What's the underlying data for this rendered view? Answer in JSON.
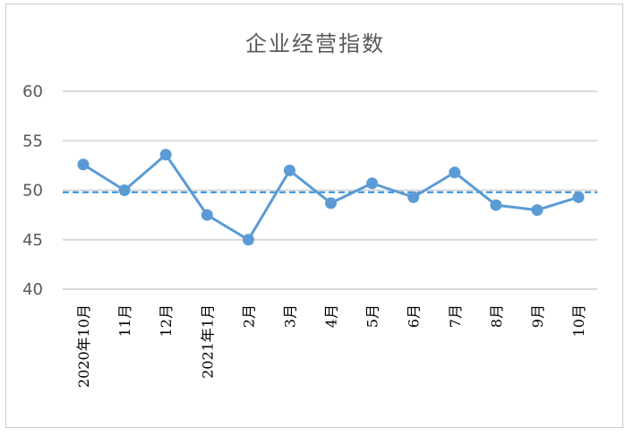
{
  "chart_data": {
    "type": "line",
    "title": "企业经营指数",
    "categories": [
      "2020年10月",
      "11月",
      "12月",
      "2021年1月",
      "2月",
      "3月",
      "4月",
      "5月",
      "6月",
      "7月",
      "8月",
      "9月",
      "10月"
    ],
    "series": [
      {
        "values": [
          52.6,
          50.0,
          53.6,
          47.5,
          45.0,
          52.0,
          48.7,
          50.7,
          49.3,
          51.8,
          48.5,
          48.0,
          49.3
        ]
      }
    ],
    "reference_line": {
      "value": 49.8,
      "style": "dashed"
    },
    "ylim": [
      40,
      60
    ],
    "yticks": [
      "60",
      "55",
      "50",
      "45",
      "40"
    ],
    "grid": true,
    "colors": {
      "line": "#5b9bd5",
      "reference": "#2e8fe0",
      "grid": "#d9d9d9"
    }
  }
}
